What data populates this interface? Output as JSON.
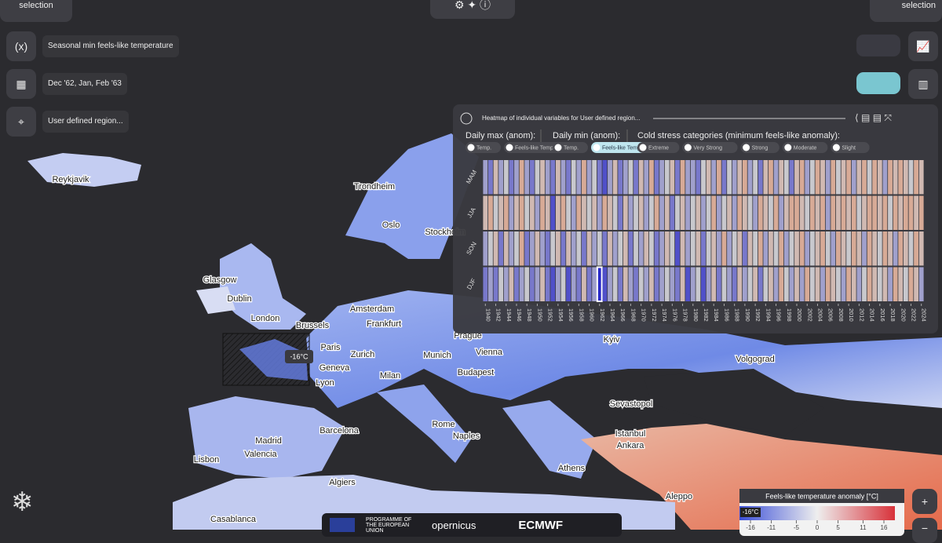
{
  "header": {
    "left_button": "Refine your selection",
    "right_button": "Visualise your selection"
  },
  "selection": {
    "variable": "Seasonal min feels-like temperature",
    "period": "Dec '62, Jan, Feb '63",
    "region": "User defined region..."
  },
  "map": {
    "region_label": "-16°C",
    "cities": [
      "Reykjavik",
      "Trondheim",
      "Oslo",
      "Stockholm",
      "Glasgow",
      "Dublin",
      "London",
      "Amsterdam",
      "Brussels",
      "Frankfurt",
      "Paris",
      "Prague",
      "Kyiv",
      "Zurich",
      "Munich",
      "Vienna",
      "Geneva",
      "Budapest",
      "Milan",
      "Lyon",
      "Volgograd",
      "Sevastopol",
      "Barcelona",
      "Rome",
      "Naples",
      "Madrid",
      "Valencia",
      "Istanbul",
      "Ankara",
      "Lisbon",
      "Athens",
      "Algiers",
      "Aleppo",
      "Casablanca"
    ]
  },
  "panel": {
    "title": "Heatmap of individual variables for User defined region...",
    "groups": [
      {
        "label": "Daily max (anom):",
        "options": [
          "Temp.",
          "Feels-like Temp."
        ]
      },
      {
        "label": "Daily min (anom):",
        "options": [
          "Temp.",
          "Feels-like Temp."
        ]
      },
      {
        "label": "Cold stress categories (minimum feels-like anomaly):",
        "options": [
          "Extreme",
          "Very Strong",
          "Strong",
          "Moderate",
          "Slight"
        ]
      }
    ],
    "selected": "Feels-like Temp."
  },
  "chart_data": {
    "type": "heatmap",
    "vlim": [
      -4,
      4
    ],
    "highlight": {
      "row": 3,
      "col": 22
    },
    "rows": [
      "MAM",
      "JJA",
      "SON",
      "DJF"
    ],
    "xticks": [
      1940,
      1942,
      1944,
      1946,
      1948,
      1950,
      1952,
      1954,
      1956,
      1958,
      1960,
      1962,
      1964,
      1966,
      1968,
      1970,
      1972,
      1974,
      1976,
      1978,
      1980,
      1982,
      1984,
      1986,
      1988,
      1990,
      1992,
      1994,
      1996,
      1998,
      2000,
      2002,
      2004,
      2006,
      2008,
      2010,
      2012,
      2014,
      2016,
      2018,
      2020,
      2022,
      2024
    ],
    "values": [
      [
        -1,
        -2,
        1,
        -1,
        0,
        -2,
        -1,
        2,
        -1,
        -2,
        0,
        1,
        -1,
        -2,
        1,
        -1,
        -2,
        0,
        -1,
        2,
        -1,
        0,
        -2,
        -3,
        -1,
        1,
        -2,
        -1,
        0,
        -2,
        1,
        -1,
        2,
        -2,
        -1,
        0,
        1,
        -2,
        2,
        -1,
        -1,
        -2,
        0,
        1,
        -1,
        2,
        -2,
        0,
        -1,
        1,
        2,
        -1,
        0,
        -2,
        1,
        2,
        -1,
        1,
        0,
        -2,
        1,
        2,
        -1,
        0,
        2,
        1,
        -1,
        2,
        0,
        1,
        2,
        -1,
        1,
        2,
        0,
        2,
        1,
        -1,
        2,
        1,
        2,
        1,
        0,
        2,
        1
      ],
      [
        1,
        2,
        0,
        1,
        2,
        -1,
        1,
        2,
        0,
        1,
        -1,
        2,
        1,
        -3,
        1,
        2,
        0,
        -1,
        2,
        1,
        0,
        1,
        -1,
        2,
        1,
        0,
        -2,
        1,
        -1,
        0,
        1,
        -1,
        0,
        2,
        -1,
        1,
        -2,
        0,
        1,
        -1,
        0,
        1,
        -1,
        0,
        2,
        -1,
        0,
        1,
        -1,
        2,
        1,
        0,
        -1,
        2,
        1,
        0,
        2,
        -1,
        1,
        2,
        2,
        1,
        0,
        2,
        1,
        2,
        -1,
        2,
        1,
        2,
        1,
        2,
        0,
        1,
        2,
        2,
        1,
        2,
        0,
        2,
        1,
        2,
        2,
        1,
        2
      ],
      [
        -1,
        0,
        1,
        -2,
        1,
        -1,
        0,
        2,
        -2,
        -1,
        1,
        -1,
        -2,
        0,
        1,
        -2,
        1,
        -1,
        0,
        -2,
        1,
        -1,
        0,
        -2,
        1,
        -1,
        0,
        1,
        -2,
        0,
        -1,
        1,
        0,
        -2,
        -1,
        1,
        0,
        -3,
        1,
        -1,
        0,
        1,
        -2,
        0,
        1,
        -1,
        2,
        -1,
        0,
        1,
        -2,
        1,
        0,
        2,
        -1,
        1,
        0,
        2,
        -1,
        0,
        1,
        2,
        -1,
        0,
        1,
        2,
        0,
        -1,
        2,
        1,
        0,
        2,
        1,
        -1,
        2,
        1,
        0,
        2,
        1,
        -1,
        2,
        1,
        0,
        2,
        1
      ],
      [
        -2,
        -1,
        -2,
        0,
        -1,
        1,
        -2,
        -1,
        0,
        -2,
        -1,
        1,
        -2,
        -3,
        -1,
        0,
        -3,
        -1,
        -2,
        1,
        -2,
        -1,
        -4,
        -3,
        -1,
        0,
        -2,
        1,
        -1,
        -2,
        0,
        -1,
        1,
        -2,
        -1,
        0,
        -1,
        -2,
        1,
        -3,
        -1,
        0,
        -3,
        -1,
        1,
        -2,
        0,
        -1,
        -2,
        1,
        -1,
        0,
        1,
        -2,
        0,
        1,
        -1,
        2,
        0,
        -1,
        1,
        -1,
        2,
        0,
        1,
        -1,
        2,
        1,
        0,
        -1,
        2,
        1,
        -1,
        0,
        2,
        1,
        0,
        1,
        -1,
        2,
        1,
        0,
        2,
        1,
        -1
      ]
    ]
  },
  "colorbar": {
    "title": "Feels-like temperature anomaly [°C]",
    "marker": "-16°C",
    "ticks": [
      -16,
      -11,
      -5,
      0,
      5,
      11,
      16
    ],
    "lim": [
      -16,
      16
    ]
  },
  "footer": {
    "eu": "PROGRAMME OF THE EUROPEAN UNION",
    "copernicus": "opernicus",
    "ecmwf": "ECMWF"
  }
}
